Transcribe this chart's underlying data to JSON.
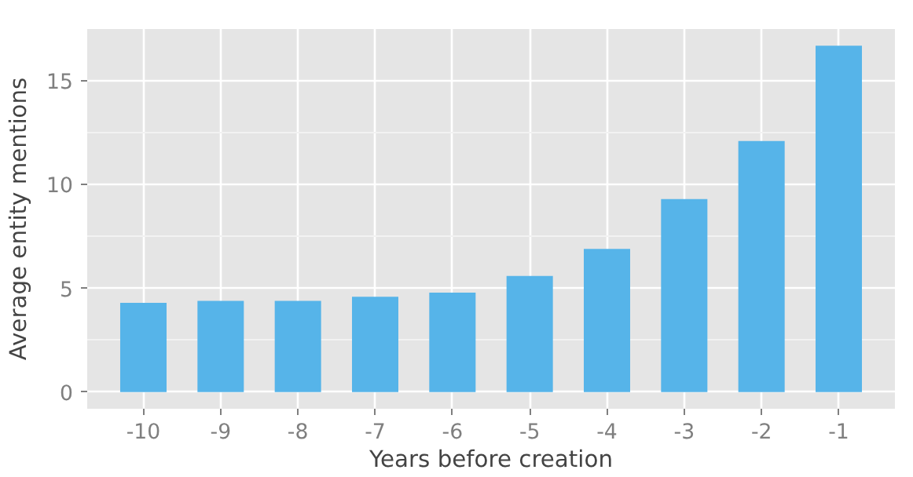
{
  "chart_data": {
    "type": "bar",
    "xlabel": "Years before creation",
    "ylabel": "Average entity mentions",
    "categories": [
      "-10",
      "-9",
      "-8",
      "-7",
      "-6",
      "-5",
      "-4",
      "-3",
      "-2",
      "-1"
    ],
    "values": [
      4.3,
      4.4,
      4.4,
      4.6,
      4.8,
      5.6,
      6.9,
      9.3,
      12.1,
      16.7
    ],
    "color": "#56b4e9",
    "ylim": [
      -0.8,
      17.5
    ],
    "yticks": [
      0,
      5,
      10,
      15
    ],
    "grid": true
  }
}
